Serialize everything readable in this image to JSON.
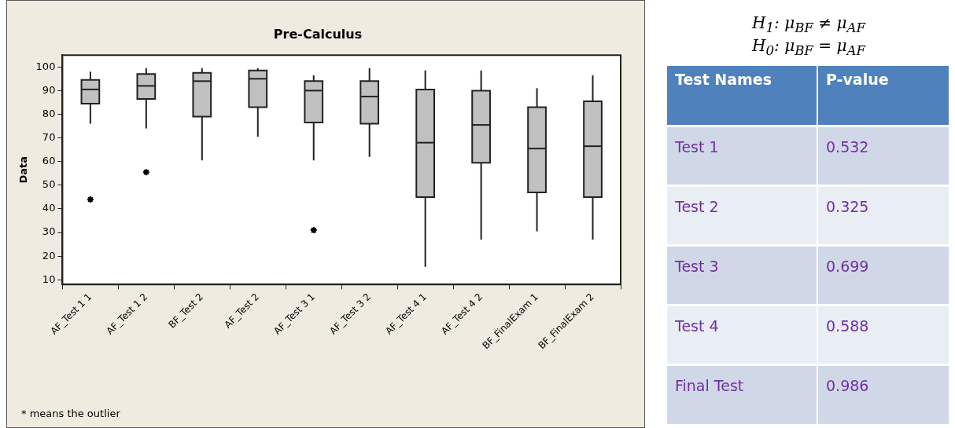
{
  "chart_data": [
    {
      "type": "box",
      "title": "Pre-Calculus",
      "ylabel": "Data",
      "color": "#c0c0c0",
      "marker": "star",
      "categories": [
        "AF_Test 1 1",
        "AF_Test 1 2",
        "BF_Test 2",
        "AF_Test 2",
        "AF_Test 3 1",
        "AF_Test 3 2",
        "AF_Test 4 1",
        "AF_Test 4 2",
        "BF_FinalExam 1",
        "BF_FinalExam 2"
      ],
      "boxes": [
        {
          "low": 76,
          "q1": 84.5,
          "median": 90.5,
          "q3": 94.5,
          "high": 98,
          "outliers": [
            44
          ]
        },
        {
          "low": 74,
          "q1": 86.5,
          "median": 92,
          "q3": 97,
          "high": 99.5,
          "outliers": [
            55.5
          ]
        },
        {
          "low": 60.5,
          "q1": 79,
          "median": 94,
          "q3": 97.5,
          "high": 99.5
        },
        {
          "low": 70.5,
          "q1": 83,
          "median": 95,
          "q3": 98.5,
          "high": 99.5
        },
        {
          "low": 60.5,
          "q1": 76.5,
          "median": 90,
          "q3": 94,
          "high": 96.5,
          "outliers": [
            31
          ]
        },
        {
          "low": 62,
          "q1": 76,
          "median": 87.5,
          "q3": 94,
          "high": 99.5
        },
        {
          "low": 15.5,
          "q1": 45,
          "median": 68,
          "q3": 90.5,
          "high": 98.5
        },
        {
          "low": 27,
          "q1": 59.5,
          "median": 75.5,
          "q3": 90,
          "high": 98.5
        },
        {
          "low": 30.5,
          "q1": 47,
          "median": 65.5,
          "q3": 83,
          "high": 91
        },
        {
          "low": 27,
          "q1": 45,
          "median": 66.5,
          "q3": 85.5,
          "high": 96.5
        }
      ],
      "ylim": [
        8,
        105
      ],
      "yticks": [
        10,
        20,
        30,
        40,
        50,
        60,
        70,
        80,
        90,
        100
      ],
      "grid": false,
      "legend": false,
      "annotations": [
        "* means the outlier"
      ]
    },
    {
      "type": "other",
      "annotations": [
        "H$_{1}$: μ$_{BF}$ ≠ μ$_{AF}$",
        "H$_{0}$: μ$_{BF}$ = μ$_{AF}$"
      ],
      "xlabel": "Test Names",
      "ylabel": "P-value",
      "categories": [
        "Test 1",
        "Test 2",
        "Test 3",
        "Test 4",
        "Final Test"
      ],
      "values": [
        0.532,
        0.325,
        0.699,
        0.588,
        0.986
      ],
      "data_labels": true
    }
  ]
}
